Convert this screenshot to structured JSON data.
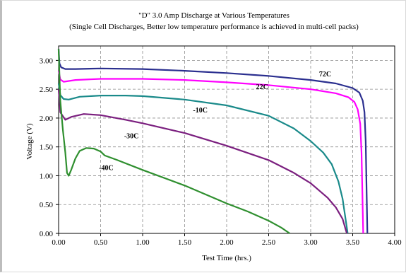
{
  "chart_data": {
    "type": "line",
    "title": "\"D\" 3.0 Amp Discharge at Various Temperatures",
    "subtitle": "(Single Cell Discharges, Better low temperature performance is achieved in multi-cell packs)",
    "xlabel": "Test Time (hrs.)",
    "ylabel": "Voltage (V)",
    "xlim": [
      0,
      4
    ],
    "ylim": [
      0,
      3.25
    ],
    "x_ticks": [
      "0.00",
      "0.50",
      "1.00",
      "1.50",
      "2.00",
      "2.50",
      "3.00",
      "3.50",
      "4.00"
    ],
    "y_ticks": [
      "0.00",
      "0.50",
      "1.00",
      "1.50",
      "2.00",
      "2.50",
      "3.00"
    ],
    "grid": true,
    "series": [
      {
        "name": "72C",
        "color": "#2b2f8f",
        "points": [
          [
            0.0,
            3.2
          ],
          [
            0.01,
            2.95
          ],
          [
            0.03,
            2.88
          ],
          [
            0.08,
            2.85
          ],
          [
            0.2,
            2.85
          ],
          [
            0.5,
            2.86
          ],
          [
            1.0,
            2.85
          ],
          [
            1.5,
            2.82
          ],
          [
            2.0,
            2.78
          ],
          [
            2.5,
            2.73
          ],
          [
            3.0,
            2.66
          ],
          [
            3.3,
            2.6
          ],
          [
            3.5,
            2.52
          ],
          [
            3.58,
            2.44
          ],
          [
            3.62,
            2.3
          ],
          [
            3.64,
            2.1
          ],
          [
            3.655,
            1.6
          ],
          [
            3.665,
            0.8
          ],
          [
            3.675,
            0.0
          ]
        ]
      },
      {
        "name": "22C",
        "color": "#ff00ff",
        "points": [
          [
            0.0,
            2.82
          ],
          [
            0.02,
            2.67
          ],
          [
            0.06,
            2.63
          ],
          [
            0.2,
            2.66
          ],
          [
            0.5,
            2.68
          ],
          [
            1.0,
            2.68
          ],
          [
            1.5,
            2.66
          ],
          [
            2.0,
            2.62
          ],
          [
            2.5,
            2.57
          ],
          [
            3.0,
            2.5
          ],
          [
            3.3,
            2.43
          ],
          [
            3.45,
            2.36
          ],
          [
            3.52,
            2.28
          ],
          [
            3.56,
            2.15
          ],
          [
            3.59,
            1.9
          ],
          [
            3.605,
            1.4
          ],
          [
            3.615,
            0.7
          ],
          [
            3.625,
            0.0
          ]
        ]
      },
      {
        "name": "-10C",
        "color": "#1a8a8a",
        "points": [
          [
            0.0,
            2.6
          ],
          [
            0.02,
            2.4
          ],
          [
            0.06,
            2.33
          ],
          [
            0.12,
            2.32
          ],
          [
            0.25,
            2.37
          ],
          [
            0.5,
            2.39
          ],
          [
            0.8,
            2.39
          ],
          [
            1.0,
            2.38
          ],
          [
            1.5,
            2.32
          ],
          [
            2.0,
            2.22
          ],
          [
            2.5,
            2.04
          ],
          [
            2.8,
            1.82
          ],
          [
            3.0,
            1.6
          ],
          [
            3.15,
            1.4
          ],
          [
            3.25,
            1.2
          ],
          [
            3.33,
            0.9
          ],
          [
            3.38,
            0.6
          ],
          [
            3.42,
            0.2
          ],
          [
            3.44,
            0.0
          ]
        ]
      },
      {
        "name": "-30C",
        "color": "#7b1f7f",
        "points": [
          [
            0.0,
            2.5
          ],
          [
            0.02,
            2.1
          ],
          [
            0.08,
            1.97
          ],
          [
            0.15,
            2.02
          ],
          [
            0.3,
            2.07
          ],
          [
            0.5,
            2.05
          ],
          [
            0.8,
            1.97
          ],
          [
            1.0,
            1.91
          ],
          [
            1.5,
            1.74
          ],
          [
            2.0,
            1.52
          ],
          [
            2.5,
            1.27
          ],
          [
            2.8,
            1.05
          ],
          [
            3.0,
            0.87
          ],
          [
            3.2,
            0.62
          ],
          [
            3.3,
            0.45
          ],
          [
            3.38,
            0.25
          ],
          [
            3.42,
            0.05
          ],
          [
            3.43,
            0.0
          ]
        ]
      },
      {
        "name": "-40C",
        "color": "#2f8f2f",
        "points": [
          [
            0.0,
            3.2
          ],
          [
            0.02,
            2.3
          ],
          [
            0.05,
            1.8
          ],
          [
            0.08,
            1.4
          ],
          [
            0.1,
            1.05
          ],
          [
            0.12,
            1.0
          ],
          [
            0.15,
            1.1
          ],
          [
            0.2,
            1.3
          ],
          [
            0.25,
            1.43
          ],
          [
            0.33,
            1.48
          ],
          [
            0.42,
            1.47
          ],
          [
            0.5,
            1.42
          ],
          [
            0.55,
            1.35
          ],
          [
            0.7,
            1.27
          ],
          [
            1.0,
            1.1
          ],
          [
            1.5,
            0.83
          ],
          [
            2.0,
            0.52
          ],
          [
            2.25,
            0.38
          ],
          [
            2.5,
            0.22
          ],
          [
            2.65,
            0.1
          ],
          [
            2.75,
            0.0
          ]
        ]
      }
    ],
    "labels": [
      {
        "text": "72C",
        "x": 3.1,
        "y": 2.72
      },
      {
        "text": "22C",
        "x": 2.35,
        "y": 2.5
      },
      {
        "text": "-10C",
        "x": 1.6,
        "y": 2.1
      },
      {
        "text": "-30C",
        "x": 0.78,
        "y": 1.65
      },
      {
        "text": "-40C",
        "x": 0.48,
        "y": 1.1
      }
    ]
  }
}
